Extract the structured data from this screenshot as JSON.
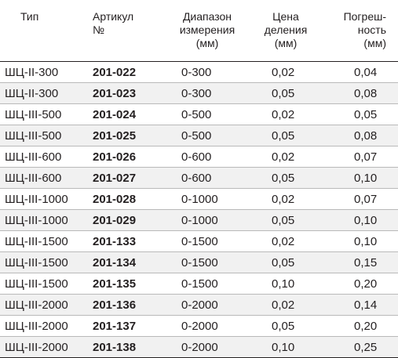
{
  "table": {
    "headers": {
      "type": [
        "Тип"
      ],
      "article": [
        "Артикул",
        "№"
      ],
      "range": [
        "Диапазон",
        "измерения",
        "(мм)"
      ],
      "division": [
        "Цена",
        "деления",
        "(мм)"
      ],
      "error": [
        "Погреш-",
        "ность",
        "(мм)"
      ]
    },
    "rows": [
      {
        "type": "ШЦ-II-300",
        "article": "201-022",
        "range": "0-300",
        "division": "0,02",
        "error": "0,04"
      },
      {
        "type": "ШЦ-II-300",
        "article": "201-023",
        "range": "0-300",
        "division": "0,05",
        "error": "0,08"
      },
      {
        "type": "ШЦ-III-500",
        "article": "201-024",
        "range": "0-500",
        "division": "0,02",
        "error": "0,05"
      },
      {
        "type": "ШЦ-III-500",
        "article": "201-025",
        "range": "0-500",
        "division": "0,05",
        "error": "0,08"
      },
      {
        "type": "ШЦ-III-600",
        "article": "201-026",
        "range": "0-600",
        "division": "0,02",
        "error": "0,07"
      },
      {
        "type": "ШЦ-III-600",
        "article": "201-027",
        "range": "0-600",
        "division": "0,05",
        "error": "0,10"
      },
      {
        "type": "ШЦ-III-1000",
        "article": "201-028",
        "range": "0-1000",
        "division": "0,02",
        "error": "0,07"
      },
      {
        "type": "ШЦ-III-1000",
        "article": "201-029",
        "range": "0-1000",
        "division": "0,05",
        "error": "0,10"
      },
      {
        "type": "ШЦ-III-1500",
        "article": "201-133",
        "range": "0-1500",
        "division": "0,02",
        "error": "0,10"
      },
      {
        "type": "ШЦ-III-1500",
        "article": "201-134",
        "range": "0-1500",
        "division": "0,05",
        "error": "0,15"
      },
      {
        "type": "ШЦ-III-1500",
        "article": "201-135",
        "range": "0-1500",
        "division": "0,10",
        "error": "0,20"
      },
      {
        "type": "ШЦ-III-2000",
        "article": "201-136",
        "range": "0-2000",
        "division": "0,02",
        "error": "0,14"
      },
      {
        "type": "ШЦ-III-2000",
        "article": "201-137",
        "range": "0-2000",
        "division": "0,05",
        "error": "0,20"
      },
      {
        "type": "ШЦ-III-2000",
        "article": "201-138",
        "range": "0-2000",
        "division": "0,10",
        "error": "0,25"
      }
    ]
  },
  "colors": {
    "text": "#231f20",
    "row_stripe": "#f1f1f1",
    "rule": "#231f20",
    "row_divider": "#b9b9b9"
  }
}
